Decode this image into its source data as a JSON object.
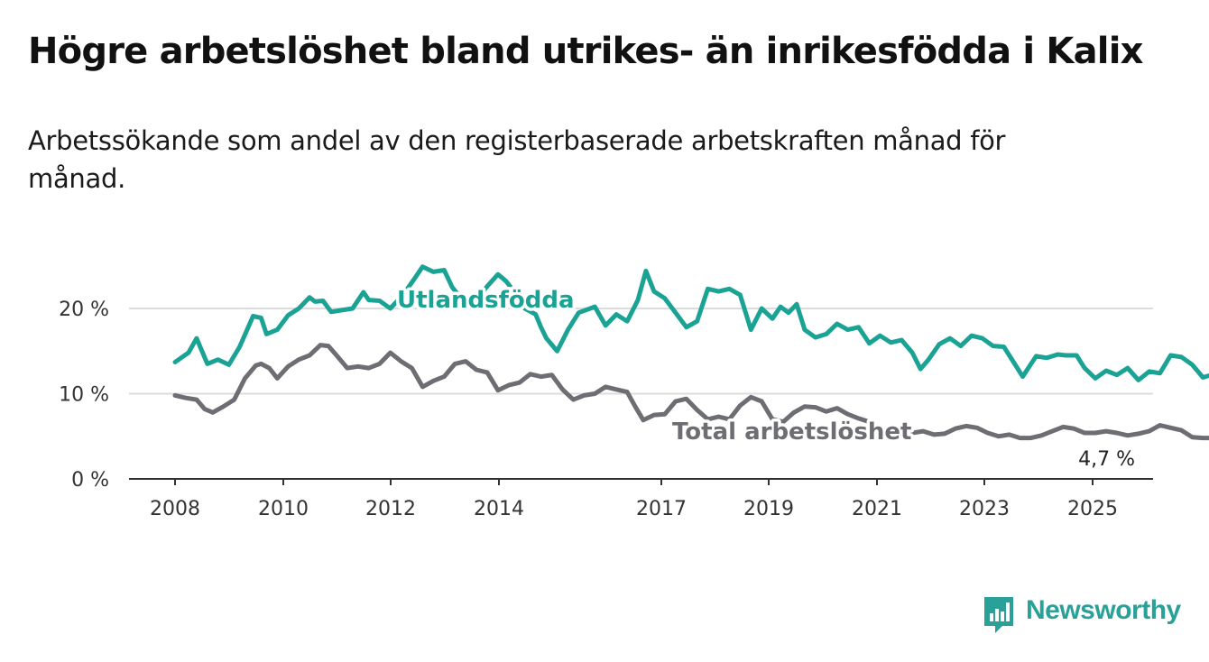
{
  "title": "Högre arbetslöshet bland utrikes- än inrikesfödda i Kalix",
  "subtitle": "Arbetssökande som andel av den registerbaserade arbetskraften månad för månad.",
  "brand": {
    "name": "Newsworthy",
    "color": "#2aa198",
    "icon": "bar-chart-logo-icon"
  },
  "chart_data": {
    "type": "line",
    "x_tick_labels": [
      "2008",
      "2010",
      "2012",
      "2014",
      "2017",
      "2019",
      "2021",
      "2023",
      "2025"
    ],
    "y_tick_labels": [
      "0 %",
      "10 %",
      "20 %"
    ],
    "ylim": [
      0,
      22
    ],
    "grid": "horizontal",
    "end_label": "4,7 %",
    "series": [
      {
        "name": "Utlandsfödda",
        "color": "#1aa394",
        "points": [
          [
            2008.0,
            13.7
          ],
          [
            2008.25,
            14.8
          ],
          [
            2008.4,
            16.5
          ],
          [
            2008.6,
            13.5
          ],
          [
            2008.8,
            14.0
          ],
          [
            2009.0,
            13.4
          ],
          [
            2009.2,
            15.5
          ],
          [
            2009.45,
            19.1
          ],
          [
            2009.6,
            18.9
          ],
          [
            2009.7,
            17.0
          ],
          [
            2009.9,
            17.5
          ],
          [
            2010.1,
            19.2
          ],
          [
            2010.3,
            20.0
          ],
          [
            2010.5,
            21.3
          ],
          [
            2010.6,
            20.8
          ],
          [
            2010.75,
            20.9
          ],
          [
            2010.9,
            19.6
          ],
          [
            2011.1,
            19.8
          ],
          [
            2011.3,
            20.0
          ],
          [
            2011.5,
            21.9
          ],
          [
            2011.6,
            21.0
          ],
          [
            2011.8,
            20.9
          ],
          [
            2012.0,
            20.0
          ],
          [
            2012.25,
            21.7
          ],
          [
            2012.45,
            23.5
          ],
          [
            2012.6,
            24.9
          ],
          [
            2012.8,
            24.3
          ],
          [
            2013.0,
            24.5
          ],
          [
            2013.15,
            22.5
          ],
          [
            2013.4,
            20.5
          ],
          [
            2013.6,
            21.0
          ],
          [
            2013.8,
            22.6
          ],
          [
            2014.0,
            24.0
          ],
          [
            2014.15,
            23.2
          ],
          [
            2014.3,
            22.0
          ],
          [
            2014.5,
            20.0
          ],
          [
            2014.7,
            19.3
          ],
          [
            2014.8,
            17.8
          ],
          [
            2014.9,
            16.5
          ],
          [
            2015.1,
            15.0
          ],
          [
            2015.3,
            17.5
          ],
          [
            2015.5,
            19.5
          ],
          [
            2015.8,
            20.2
          ],
          [
            2016.0,
            18.0
          ],
          [
            2016.2,
            19.3
          ],
          [
            2016.4,
            18.5
          ],
          [
            2016.6,
            21.0
          ],
          [
            2016.75,
            24.4
          ],
          [
            2016.9,
            22.0
          ],
          [
            2017.1,
            21.2
          ],
          [
            2017.3,
            19.5
          ],
          [
            2017.5,
            17.8
          ],
          [
            2017.7,
            18.5
          ],
          [
            2017.9,
            22.3
          ],
          [
            2018.1,
            22.0
          ],
          [
            2018.3,
            22.3
          ],
          [
            2018.5,
            21.6
          ],
          [
            2018.7,
            17.5
          ],
          [
            2018.9,
            20.0
          ],
          [
            2019.1,
            18.8
          ],
          [
            2019.25,
            20.2
          ],
          [
            2019.4,
            19.5
          ],
          [
            2019.55,
            20.5
          ],
          [
            2019.7,
            17.5
          ],
          [
            2019.9,
            16.6
          ],
          [
            2020.1,
            17.0
          ],
          [
            2020.3,
            18.2
          ],
          [
            2020.5,
            17.5
          ],
          [
            2020.7,
            17.8
          ],
          [
            2020.9,
            15.9
          ],
          [
            2021.1,
            16.8
          ],
          [
            2021.3,
            16.0
          ],
          [
            2021.5,
            16.3
          ],
          [
            2021.7,
            14.8
          ],
          [
            2021.85,
            12.9
          ],
          [
            2022.0,
            14.0
          ],
          [
            2022.2,
            15.8
          ],
          [
            2022.4,
            16.5
          ],
          [
            2022.6,
            15.6
          ],
          [
            2022.8,
            16.8
          ],
          [
            2023.0,
            16.5
          ],
          [
            2023.2,
            15.6
          ],
          [
            2023.4,
            15.5
          ],
          [
            2023.6,
            13.5
          ],
          [
            2023.75,
            12.0
          ],
          [
            2024.0,
            14.4
          ],
          [
            2024.2,
            14.2
          ],
          [
            2024.4,
            14.6
          ],
          [
            2024.55,
            14.5
          ],
          [
            2024.75,
            14.5
          ],
          [
            2024.9,
            13.0
          ],
          [
            2025.1,
            11.8
          ],
          [
            2025.3,
            12.7
          ],
          [
            2025.5,
            12.2
          ],
          [
            2025.7,
            13.0
          ],
          [
            2025.9,
            11.6
          ],
          [
            2026.1,
            12.6
          ],
          [
            2026.3,
            12.4
          ],
          [
            2026.5,
            14.5
          ],
          [
            2026.7,
            14.3
          ],
          [
            2026.9,
            13.4
          ],
          [
            2027.1,
            11.9
          ],
          [
            2027.3,
            12.3
          ],
          [
            2027.5,
            11.9
          ],
          [
            2027.7,
            11.6
          ],
          [
            2027.85,
            11.3
          ],
          [
            2028.0,
            10.7
          ]
        ]
      },
      {
        "name": "Total arbetslöshet",
        "color": "#6e6d73",
        "points": [
          [
            2008.0,
            9.8
          ],
          [
            2008.2,
            9.5
          ],
          [
            2008.4,
            9.3
          ],
          [
            2008.55,
            8.2
          ],
          [
            2008.7,
            7.8
          ],
          [
            2008.9,
            8.5
          ],
          [
            2009.1,
            9.3
          ],
          [
            2009.3,
            11.8
          ],
          [
            2009.5,
            13.3
          ],
          [
            2009.6,
            13.5
          ],
          [
            2009.75,
            13.0
          ],
          [
            2009.9,
            11.8
          ],
          [
            2010.1,
            13.2
          ],
          [
            2010.3,
            14.0
          ],
          [
            2010.5,
            14.5
          ],
          [
            2010.7,
            15.7
          ],
          [
            2010.85,
            15.6
          ],
          [
            2011.0,
            14.5
          ],
          [
            2011.2,
            13.0
          ],
          [
            2011.4,
            13.2
          ],
          [
            2011.6,
            13.0
          ],
          [
            2011.8,
            13.5
          ],
          [
            2012.0,
            14.8
          ],
          [
            2012.2,
            13.8
          ],
          [
            2012.4,
            13.0
          ],
          [
            2012.6,
            10.8
          ],
          [
            2012.8,
            11.5
          ],
          [
            2013.0,
            12.0
          ],
          [
            2013.2,
            13.5
          ],
          [
            2013.4,
            13.8
          ],
          [
            2013.6,
            12.8
          ],
          [
            2013.8,
            12.5
          ],
          [
            2014.0,
            10.4
          ],
          [
            2014.2,
            11.0
          ],
          [
            2014.4,
            11.3
          ],
          [
            2014.6,
            12.3
          ],
          [
            2014.8,
            12.0
          ],
          [
            2015.0,
            12.2
          ],
          [
            2015.2,
            10.5
          ],
          [
            2015.4,
            9.3
          ],
          [
            2015.6,
            9.8
          ],
          [
            2015.8,
            10.0
          ],
          [
            2016.0,
            10.8
          ],
          [
            2016.2,
            10.5
          ],
          [
            2016.4,
            10.2
          ],
          [
            2016.55,
            8.5
          ],
          [
            2016.7,
            6.9
          ],
          [
            2016.9,
            7.5
          ],
          [
            2017.1,
            7.6
          ],
          [
            2017.3,
            9.1
          ],
          [
            2017.5,
            9.4
          ],
          [
            2017.7,
            8.1
          ],
          [
            2017.9,
            7.0
          ],
          [
            2018.1,
            7.3
          ],
          [
            2018.3,
            7.0
          ],
          [
            2018.5,
            8.6
          ],
          [
            2018.7,
            9.6
          ],
          [
            2018.9,
            9.1
          ],
          [
            2019.1,
            7.0
          ],
          [
            2019.3,
            6.7
          ],
          [
            2019.5,
            7.8
          ],
          [
            2019.7,
            8.5
          ],
          [
            2019.9,
            8.4
          ],
          [
            2020.1,
            7.9
          ],
          [
            2020.3,
            8.3
          ],
          [
            2020.5,
            7.6
          ],
          [
            2020.7,
            7.1
          ],
          [
            2020.9,
            6.7
          ],
          [
            2021.1,
            5.5
          ],
          [
            2021.3,
            5.0
          ],
          [
            2021.5,
            5.2
          ],
          [
            2021.7,
            5.4
          ],
          [
            2021.9,
            5.6
          ],
          [
            2022.1,
            5.2
          ],
          [
            2022.3,
            5.3
          ],
          [
            2022.5,
            5.9
          ],
          [
            2022.7,
            6.2
          ],
          [
            2022.9,
            6.0
          ],
          [
            2023.1,
            5.4
          ],
          [
            2023.3,
            5.0
          ],
          [
            2023.5,
            5.2
          ],
          [
            2023.7,
            4.8
          ],
          [
            2023.9,
            4.8
          ],
          [
            2024.1,
            5.1
          ],
          [
            2024.3,
            5.6
          ],
          [
            2024.5,
            6.1
          ],
          [
            2024.7,
            5.9
          ],
          [
            2024.9,
            5.4
          ],
          [
            2025.1,
            5.4
          ],
          [
            2025.3,
            5.6
          ],
          [
            2025.5,
            5.4
          ],
          [
            2025.7,
            5.1
          ],
          [
            2025.9,
            5.3
          ],
          [
            2026.1,
            5.6
          ],
          [
            2026.3,
            6.3
          ],
          [
            2026.5,
            6.0
          ],
          [
            2026.7,
            5.7
          ],
          [
            2026.9,
            4.9
          ],
          [
            2027.1,
            4.8
          ],
          [
            2027.3,
            4.8
          ],
          [
            2027.5,
            5.0
          ],
          [
            2027.7,
            5.4
          ],
          [
            2027.85,
            5.2
          ],
          [
            2028.0,
            4.7
          ]
        ]
      }
    ]
  }
}
